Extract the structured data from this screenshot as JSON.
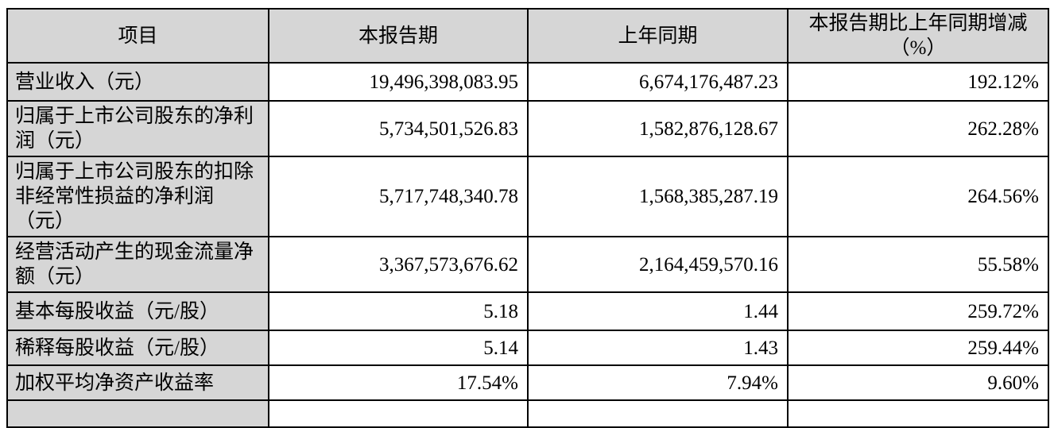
{
  "table": {
    "headers": {
      "item": "项目",
      "current": "本报告期",
      "prior": "上年同期",
      "change": "本报告期比上年同期增减\n（%）"
    },
    "rows": [
      {
        "item": "营业收入（元）",
        "current": "19,496,398,083.95",
        "prior": "6,674,176,487.23",
        "change": "192.12%"
      },
      {
        "item": "归属于上市公司股东的净利\n润（元）",
        "current": "5,734,501,526.83",
        "prior": "1,582,876,128.67",
        "change": "262.28%"
      },
      {
        "item": "归属于上市公司股东的扣除\n非经常性损益的净利润\n（元）",
        "current": "5,717,748,340.78",
        "prior": "1,568,385,287.19",
        "change": "264.56%"
      },
      {
        "item": "经营活动产生的现金流量净\n额（元）",
        "current": "3,367,573,676.62",
        "prior": "2,164,459,570.16",
        "change": "55.58%"
      },
      {
        "item": "基本每股收益（元/股）",
        "current": "5.18",
        "prior": "1.44",
        "change": "259.72%"
      },
      {
        "item": "稀释每股收益（元/股）",
        "current": "5.14",
        "prior": "1.43",
        "change": "259.44%"
      },
      {
        "item": "加权平均净资产收益率",
        "current": "17.54%",
        "prior": "7.94%",
        "change": "9.60%"
      }
    ],
    "colors": {
      "header_bg": "#d6d6d6",
      "item_column_bg": "#d6d6d6",
      "value_cell_bg": "#ffffff",
      "border": "#000000",
      "text": "#000000"
    }
  }
}
